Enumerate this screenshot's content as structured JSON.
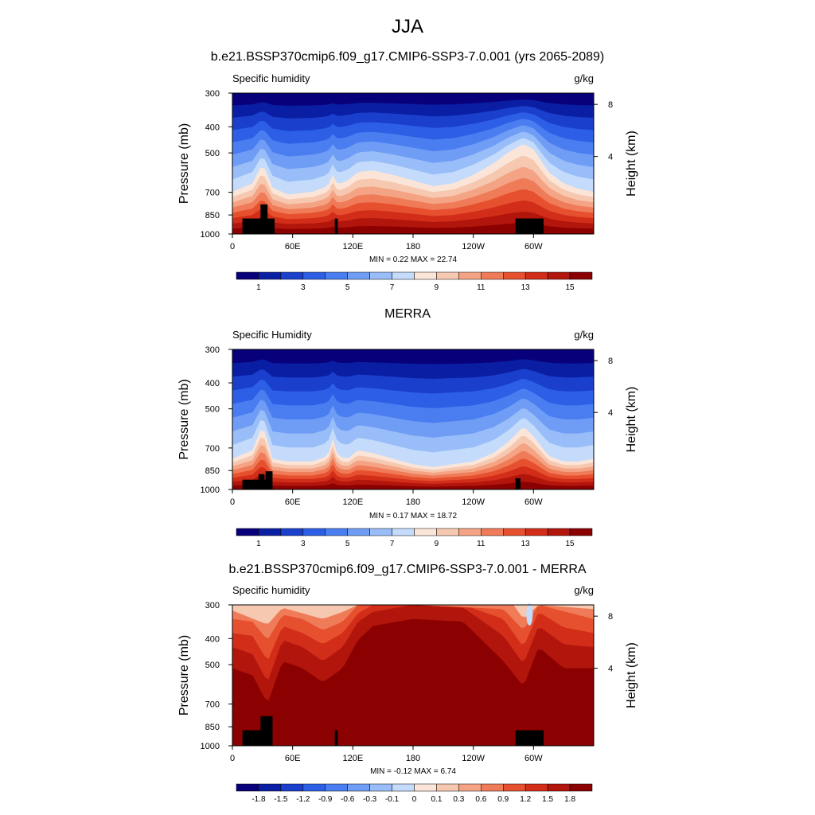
{
  "figure": {
    "main_title": "JJA",
    "panels": [
      {
        "title": "b.e21.BSSP370cmip6.f09_g17.CMIP6-SSP3-7.0.001 (yrs 2065-2089)",
        "variable": "Specific humidity",
        "units": "g/kg",
        "stats": "MIN =   0.22  MAX =  22.74",
        "palette": "full",
        "colorbar_labels": [
          "1",
          "3",
          "5",
          "7",
          "9",
          "11",
          "13",
          "15"
        ]
      },
      {
        "title": "MERRA",
        "variable": "Specific Humidity",
        "units": "g/kg",
        "stats": "MIN =   0.17  MAX =  18.72",
        "palette": "full",
        "colorbar_labels": [
          "1",
          "3",
          "5",
          "7",
          "9",
          "11",
          "13",
          "15"
        ]
      },
      {
        "title": "b.e21.BSSP370cmip6.f09_g17.CMIP6-SSP3-7.0.001 - MERRA",
        "variable": "Specific humidity",
        "units": "g/kg",
        "stats": "MIN =  -0.12  MAX =   6.74",
        "palette": "full",
        "colorbar_labels": [
          "-1.8",
          "-1.5",
          "-1.2",
          "-0.9",
          "-0.6",
          "-0.3",
          "-0.1",
          "0",
          "0.1",
          "0.3",
          "0.6",
          "0.9",
          "1.2",
          "1.5",
          "1.8"
        ]
      }
    ]
  },
  "chart_data": {
    "type": "heatmap",
    "title": "JJA",
    "xlabel": "",
    "ylabel": "Pressure (mb)",
    "y2label": "Height (km)",
    "x_ticks": [
      "0",
      "60E",
      "120E",
      "180",
      "120W",
      "60W"
    ],
    "x_tick_values": [
      0,
      60,
      120,
      180,
      240,
      300
    ],
    "x_range": [
      0,
      360
    ],
    "y_ticks": [
      "300",
      "400",
      "500",
      "700",
      "850",
      "1000"
    ],
    "y_tick_values": [
      300,
      400,
      500,
      700,
      850,
      1000
    ],
    "y_range": [
      300,
      1000
    ],
    "y2_ticks": [
      "8",
      "4"
    ],
    "y2_tick_values": [
      8,
      4
    ],
    "colors": {
      "full": [
        "#08007a",
        "#0a1ea3",
        "#1a3fcc",
        "#2c5fe6",
        "#4a7ef0",
        "#6f9cf5",
        "#98bdf8",
        "#c4dbfb",
        "#fbe5d9",
        "#f7c8b0",
        "#f4a484",
        "#ef7b58",
        "#e6502f",
        "#d12d18",
        "#b1150c",
        "#8b0000"
      ],
      "topography": "#000000"
    }
  }
}
